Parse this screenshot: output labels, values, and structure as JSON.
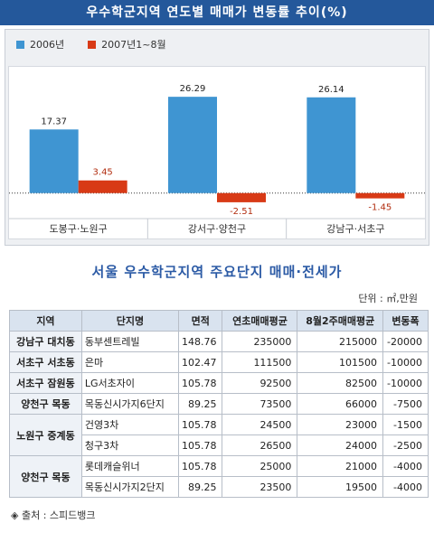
{
  "banner_title": "우수학군지역 연도별 매매가 변동률 추이(%)",
  "colors": {
    "series_2006": "#3f95d2",
    "series_2007": "#d83a16",
    "header": "#24589b"
  },
  "legend": [
    "2006년",
    "2007년1~8월"
  ],
  "chart_data": {
    "type": "bar",
    "title": "우수학군지역 연도별 매매가 변동률 추이(%)",
    "categories": [
      "도봉구·노원구",
      "강서구·양천구",
      "강남구·서초구"
    ],
    "series": [
      {
        "name": "2006년",
        "values": [
          17.37,
          26.29,
          26.14
        ]
      },
      {
        "name": "2007년1~8월",
        "values": [
          3.45,
          -2.51,
          -1.45
        ]
      }
    ],
    "data_labels": [
      [
        "17.37",
        "26.29",
        "26.14"
      ],
      [
        "3.45",
        "-2.51",
        "-1.45"
      ]
    ],
    "ylim": [
      -5,
      32
    ],
    "legend_position": "top-left",
    "grid": false
  },
  "table_title": "서울 우수학군지역 주요단지 매매·전세가",
  "unit": "단위 : ㎡,만원",
  "table": {
    "headers": [
      "지역",
      "단지명",
      "면적",
      "연초매매평균",
      "8월2주매매평균",
      "변동폭"
    ],
    "groups": [
      {
        "region": "강남구 대치동",
        "rows": [
          [
            "동부센트레빌",
            "148.76",
            "235000",
            "215000",
            "-20000"
          ]
        ]
      },
      {
        "region": "서초구 서초동",
        "rows": [
          [
            "은마",
            "102.47",
            "111500",
            "101500",
            "-10000"
          ]
        ]
      },
      {
        "region": "서초구 잠원동",
        "rows": [
          [
            "LG서초자이",
            "105.78",
            "92500",
            "82500",
            "-10000"
          ]
        ]
      },
      {
        "region": "양천구 목동",
        "rows": [
          [
            "목동신시가지6단지",
            "89.25",
            "73500",
            "66000",
            "-7500"
          ]
        ]
      },
      {
        "region": "노원구 중계동",
        "rows": [
          [
            "건영3차",
            "105.78",
            "24500",
            "23000",
            "-1500"
          ],
          [
            "청구3차",
            "105.78",
            "26500",
            "24000",
            "-2500"
          ]
        ]
      },
      {
        "region": "양천구 목동",
        "rows": [
          [
            "롯데캐슬위너",
            "105.78",
            "25000",
            "21000",
            "-4000"
          ],
          [
            "목동신시가지2단지",
            "89.25",
            "23500",
            "19500",
            "-4000"
          ]
        ]
      }
    ]
  },
  "source": "◈ 출처 : 스피드뱅크"
}
